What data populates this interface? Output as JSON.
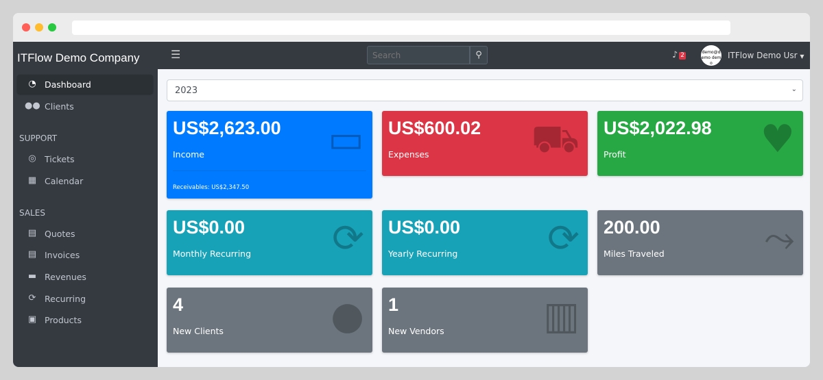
{
  "app": {
    "company": "ITFlow Demo Company"
  },
  "sidebar": {
    "items": [
      {
        "label": "Dashboard",
        "icon": "dashboard-gauge-icon",
        "active": true
      },
      {
        "label": "Clients",
        "icon": "users-icon"
      }
    ],
    "support_header": "SUPPORT",
    "support": [
      {
        "label": "Tickets",
        "icon": "life-ring-icon"
      },
      {
        "label": "Calendar",
        "icon": "calendar-icon"
      }
    ],
    "sales_header": "SALES",
    "sales": [
      {
        "label": "Quotes",
        "icon": "file-icon"
      },
      {
        "label": "Invoices",
        "icon": "invoice-icon"
      },
      {
        "label": "Revenues",
        "icon": "credit-card-icon"
      },
      {
        "label": "Recurring",
        "icon": "sync-icon"
      },
      {
        "label": "Products",
        "icon": "box-icon"
      }
    ]
  },
  "topbar": {
    "search_placeholder": "Search",
    "notifications": "2",
    "avatar_text": "demo@demo demo",
    "user": "ITFlow Demo Usr"
  },
  "filter": {
    "year": "2023"
  },
  "cards": [
    {
      "value": "US$2,623.00",
      "label": "Income",
      "footer": "Receivables: US$2,347.50",
      "color": "#007bff",
      "icon": "credit-card-icon"
    },
    {
      "value": "US$600.02",
      "label": "Expenses",
      "color": "#dc3545",
      "icon": "shopping-cart-icon"
    },
    {
      "value": "US$2,022.98",
      "label": "Profit",
      "color": "#28a745",
      "icon": "heart-icon"
    },
    {
      "value": "US$0.00",
      "label": "Monthly Recurring",
      "color": "#17a2b8",
      "icon": "sync-icon"
    },
    {
      "value": "US$0.00",
      "label": "Yearly Recurring",
      "color": "#17a2b8",
      "icon": "sync-icon"
    },
    {
      "value": "200.00",
      "label": "Miles Traveled",
      "color": "#6c757d",
      "icon": "route-icon"
    },
    {
      "value": "4",
      "label": "New Clients",
      "color": "#6c757d",
      "icon": "users-icon"
    },
    {
      "value": "1",
      "label": "New Vendors",
      "color": "#6c757d",
      "icon": "building-icon"
    }
  ]
}
